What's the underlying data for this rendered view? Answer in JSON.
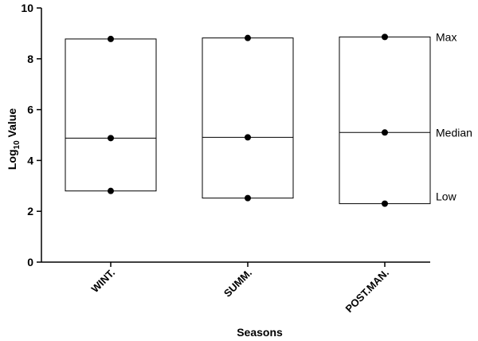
{
  "chart_data": {
    "type": "box",
    "categories": [
      "WINT.",
      "SUMM.",
      "POST.MAN."
    ],
    "series": [
      {
        "name": "Max",
        "values": [
          8.78,
          8.82,
          8.86
        ]
      },
      {
        "name": "Median",
        "values": [
          4.88,
          4.91,
          5.1
        ]
      },
      {
        "name": "Low",
        "values": [
          2.8,
          2.52,
          2.3
        ]
      }
    ],
    "xlabel": "Seasons",
    "ylabel_main": "Log",
    "ylabel_sub": "10",
    "ylabel_rest": " Value",
    "ylim": [
      0,
      10
    ],
    "yticks": [
      "0",
      "2",
      "4",
      "6",
      "8",
      "10"
    ],
    "annotations": [
      "Max",
      "Median",
      "Low"
    ],
    "grid": false,
    "legend": "none"
  }
}
